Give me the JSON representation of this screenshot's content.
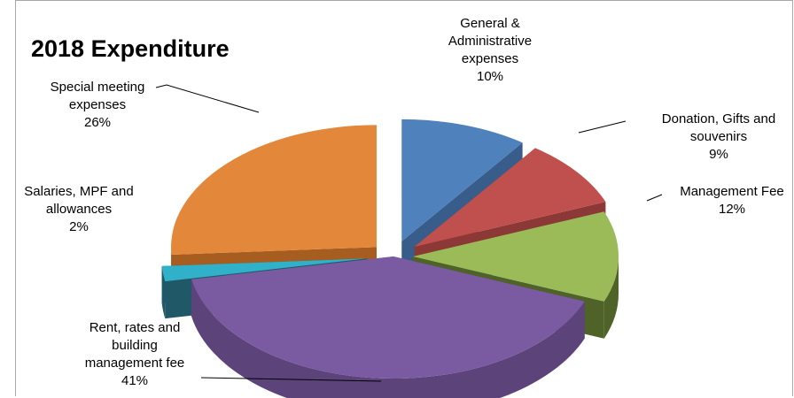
{
  "chart_data": {
    "type": "pie",
    "title": "2018 Expenditure",
    "slices": [
      {
        "label": "General & Administrative expenses",
        "value": 10,
        "label_lines": [
          "General &",
          "Administrative",
          "expenses",
          "10%"
        ],
        "color": "#4F81BD",
        "side_color": "#385D8A"
      },
      {
        "label": "Donation, Gifts and souvenirs",
        "value": 9,
        "label_lines": [
          "Donation, Gifts and",
          "souvenirs",
          "9%"
        ],
        "color": "#C0504D",
        "side_color": "#8C3836"
      },
      {
        "label": "Management Fee",
        "value": 12,
        "label_lines": [
          "Management Fee",
          "12%"
        ],
        "color": "#9BBB59",
        "side_color": "#4F6228"
      },
      {
        "label": "Rent, rates and building management fee",
        "value": 41,
        "label_lines": [
          "Rent, rates and",
          "building",
          "management fee",
          "41%"
        ],
        "color": "#7A5BA1",
        "side_color": "#5C4379"
      },
      {
        "label": "Salaries, MPF and allowances",
        "value": 2,
        "label_lines": [
          "Salaries, MPF and",
          "allowances",
          "2%"
        ],
        "color": "#31B0C9",
        "side_color": "#215867"
      },
      {
        "label": "Special meeting expenses",
        "value": 26,
        "label_lines": [
          "Special meeting",
          "expenses",
          "26%"
        ],
        "color": "#E3873A",
        "side_color": "#A85D20"
      }
    ]
  }
}
